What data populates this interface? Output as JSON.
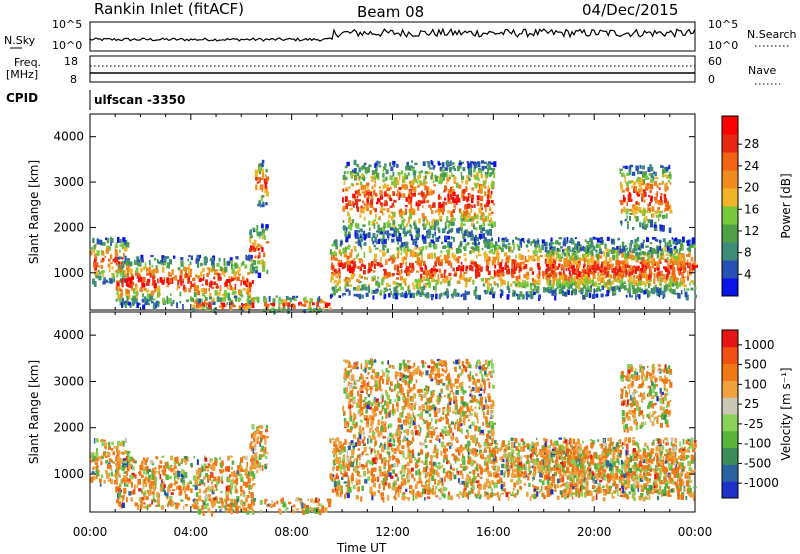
{
  "header": {
    "site": "Rankin Inlet (fitACF)",
    "beam": "Beam 08",
    "date": "04/Dec/2015"
  },
  "top_panels": {
    "nsky_label": "N.Sky",
    "nsky_ticks": [
      "10^5",
      "10^0"
    ],
    "nsearch_label": "N.Search",
    "nsearch_ticks": [
      "10^5",
      "10^0"
    ],
    "freq_label": "Freq.",
    "freq_unit": "[MHz]",
    "freq_ticks": [
      "18",
      "8"
    ],
    "nave_label": "Nave",
    "nave_ticks": [
      "60",
      "0"
    ],
    "cpid_label": "CPID",
    "cpid_value": "ulfscan -3350"
  },
  "colors": {
    "power": [
      "#0a14e6",
      "#2850b4",
      "#3c8c78",
      "#50a048",
      "#78c83c",
      "#f0b428",
      "#f08c1e",
      "#f06414",
      "#e62814",
      "#ff0000"
    ],
    "velocity": [
      "#1e32c8",
      "#2a64a0",
      "#3c8c5a",
      "#5ab43c",
      "#8cd25a",
      "#c8c8b4",
      "#f0a03c",
      "#f07814",
      "#f05014",
      "#e61414"
    ]
  },
  "chart_data": [
    {
      "type": "heatmap",
      "ylabel": "Slant Range [km]",
      "xlabel": "",
      "ylim": [
        180,
        4500
      ],
      "yticks": [
        "1000",
        "2000",
        "3000",
        "4000"
      ],
      "xlim": [
        "00:00",
        "24:00"
      ],
      "colorbar": {
        "label": "Power [dB]",
        "ticks": [
          "4",
          "8",
          "12",
          "16",
          "20",
          "24",
          "28"
        ]
      },
      "echo_regions": [
        {
          "t0": 0.0,
          "t1": 1.5,
          "r0": 800,
          "r1": 1800
        },
        {
          "t0": 1.0,
          "t1": 6.5,
          "r0": 300,
          "r1": 1400
        },
        {
          "t0": 4.0,
          "t1": 9.5,
          "r0": 200,
          "r1": 500
        },
        {
          "t0": 6.3,
          "t1": 7.0,
          "r0": 1000,
          "r1": 2100
        },
        {
          "t0": 6.5,
          "t1": 7.0,
          "r0": 2500,
          "r1": 3500
        },
        {
          "t0": 9.5,
          "t1": 24.0,
          "r0": 500,
          "r1": 1800
        },
        {
          "t0": 10.0,
          "t1": 16.0,
          "r0": 1800,
          "r1": 3500
        },
        {
          "t0": 18.0,
          "t1": 23.5,
          "r0": 600,
          "r1": 1600
        },
        {
          "t0": 21.0,
          "t1": 23.0,
          "r0": 2000,
          "r1": 3400
        }
      ]
    },
    {
      "type": "heatmap",
      "ylabel": "Slant Range [km]",
      "xlabel": "Time UT",
      "ylim": [
        180,
        4500
      ],
      "yticks": [
        "1000",
        "2000",
        "3000",
        "4000"
      ],
      "xticks": [
        "00:00",
        "04:00",
        "08:00",
        "12:00",
        "16:00",
        "20:00",
        "00:00"
      ],
      "colorbar": {
        "label": "Velocity [m s⁻¹]",
        "ticks": [
          "1000",
          "500",
          "100",
          "25",
          "-25",
          "-100",
          "-500",
          "-1000"
        ]
      },
      "echo_regions": [
        {
          "t0": 0.0,
          "t1": 1.5,
          "r0": 800,
          "r1": 1800
        },
        {
          "t0": 1.0,
          "t1": 6.5,
          "r0": 300,
          "r1": 1400
        },
        {
          "t0": 4.0,
          "t1": 9.5,
          "r0": 200,
          "r1": 500
        },
        {
          "t0": 6.3,
          "t1": 7.0,
          "r0": 1000,
          "r1": 2100
        },
        {
          "t0": 9.5,
          "t1": 24.0,
          "r0": 500,
          "r1": 1800
        },
        {
          "t0": 10.0,
          "t1": 16.0,
          "r0": 1800,
          "r1": 3500
        },
        {
          "t0": 16.5,
          "t1": 19.5,
          "r0": 1000,
          "r1": 1700
        },
        {
          "t0": 18.0,
          "t1": 23.5,
          "r0": 600,
          "r1": 1600
        },
        {
          "t0": 21.0,
          "t1": 23.0,
          "r0": 2000,
          "r1": 3400
        }
      ]
    }
  ]
}
